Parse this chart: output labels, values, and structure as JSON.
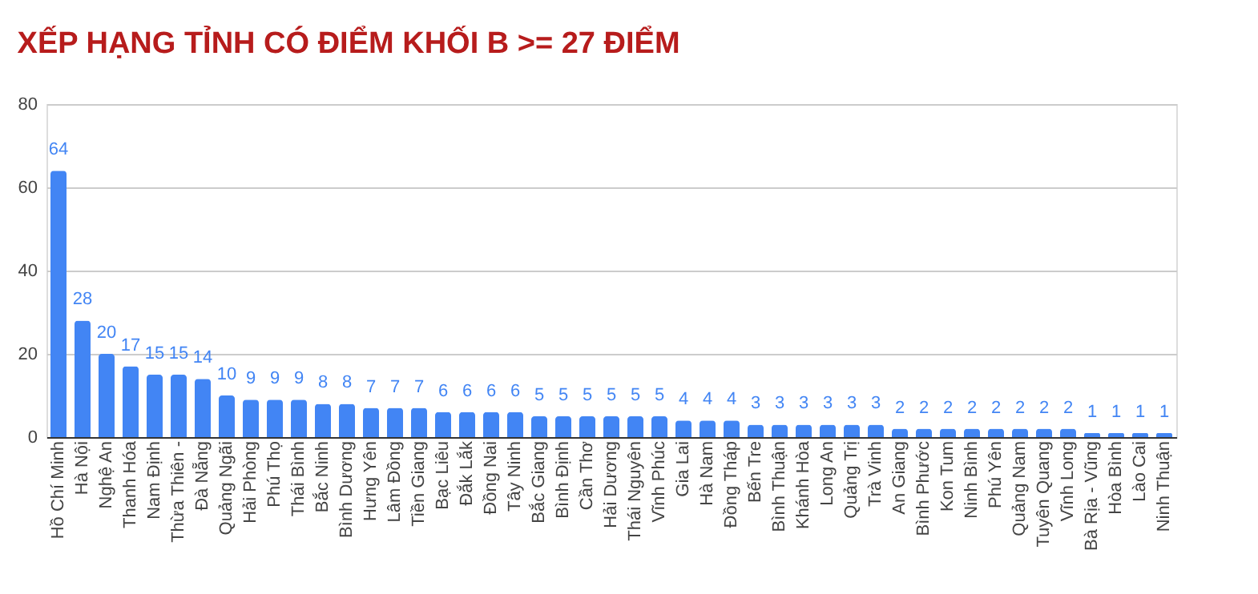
{
  "chart_data": {
    "type": "bar",
    "title": "XẾP HẠNG TỈNH CÓ ĐIỂM KHỐI B >= 27 ĐIỂM",
    "categories": [
      "Hồ Chí Minh",
      "Hà Nội",
      "Nghệ An",
      "Thanh Hóa",
      "Nam Định",
      "Thừa Thiên -",
      "Đà Nẵng",
      "Quảng Ngãi",
      "Hải Phòng",
      "Phú Thọ",
      "Thái Bình",
      "Bắc Ninh",
      "Bình Dương",
      "Hưng Yên",
      "Lâm Đồng",
      "Tiền Giang",
      "Bạc Liêu",
      "Đắk Lắk",
      "Đồng Nai",
      "Tây Ninh",
      "Bắc Giang",
      "Bình Định",
      "Cần Thơ",
      "Hải Dương",
      "Thái Nguyên",
      "Vĩnh Phúc",
      "Gia Lai",
      "Hà Nam",
      "Đồng Tháp",
      "Bến Tre",
      "Bình Thuận",
      "Khánh Hòa",
      "Long An",
      "Quảng Trị",
      "Trà Vinh",
      "An Giang",
      "Bình Phước",
      "Kon Tum",
      "Ninh Bình",
      "Phú Yên",
      "Quảng Nam",
      "Tuyên Quang",
      "Vĩnh Long",
      "Bà Rịa - Vũng",
      "Hòa Bình",
      "Lào Cai",
      "Ninh Thuận"
    ],
    "values": [
      64,
      28,
      20,
      17,
      15,
      15,
      14,
      10,
      9,
      9,
      9,
      8,
      8,
      7,
      7,
      7,
      6,
      6,
      6,
      6,
      5,
      5,
      5,
      5,
      5,
      5,
      4,
      4,
      4,
      3,
      3,
      3,
      3,
      3,
      3,
      2,
      2,
      2,
      2,
      2,
      2,
      2,
      2,
      1,
      1,
      1,
      1
    ],
    "color": "#4285f4",
    "ylim": [
      0,
      80
    ],
    "yticks": [
      0,
      20,
      40,
      60,
      80
    ],
    "grid": "y",
    "data_labels": true
  }
}
